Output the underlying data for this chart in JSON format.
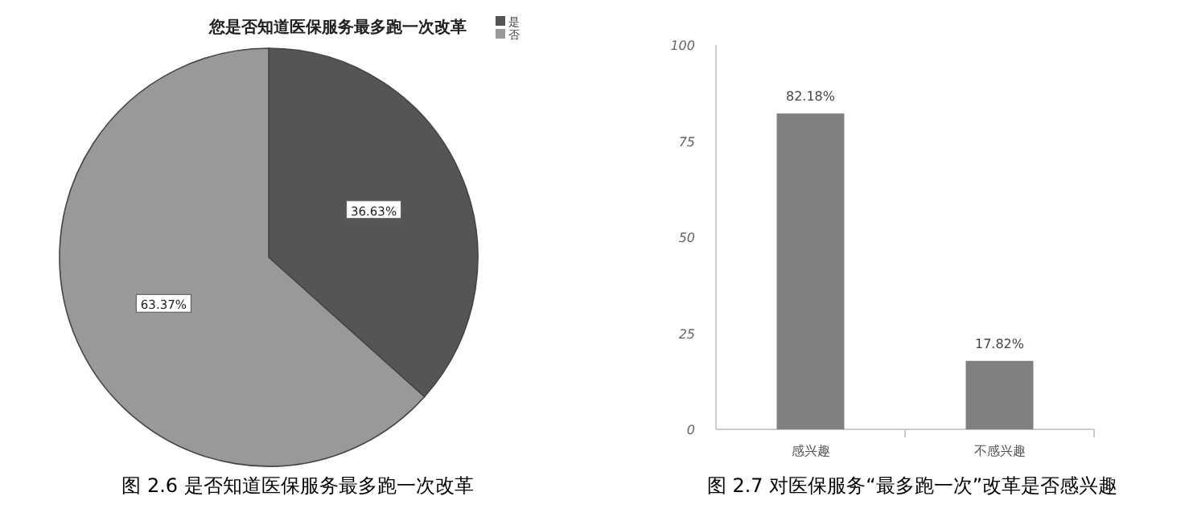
{
  "chart_data": [
    {
      "type": "pie",
      "title": "您是否知道医保服务最多跑一次改革",
      "categories": [
        "是",
        "否"
      ],
      "values": [
        36.63,
        63.37
      ],
      "colors": [
        "#555555",
        "#999999"
      ],
      "value_labels": [
        "36.63%",
        "63.37%"
      ],
      "legend": "top right",
      "annotations": [
        "图 2.6 是否知道医保服务最多跑一次改革"
      ]
    },
    {
      "type": "bar",
      "categories": [
        "感兴趣",
        "不感兴趣"
      ],
      "values": [
        82.18,
        17.82
      ],
      "color": "#808080",
      "value_labels": [
        "82.18%",
        "17.82%"
      ],
      "ylim": [
        0,
        100
      ],
      "yticks": [
        0,
        25,
        50,
        75,
        100
      ],
      "annotations": [
        "图 2.7 对医保服务“最多跑一次”改革是否感兴趣"
      ]
    }
  ]
}
